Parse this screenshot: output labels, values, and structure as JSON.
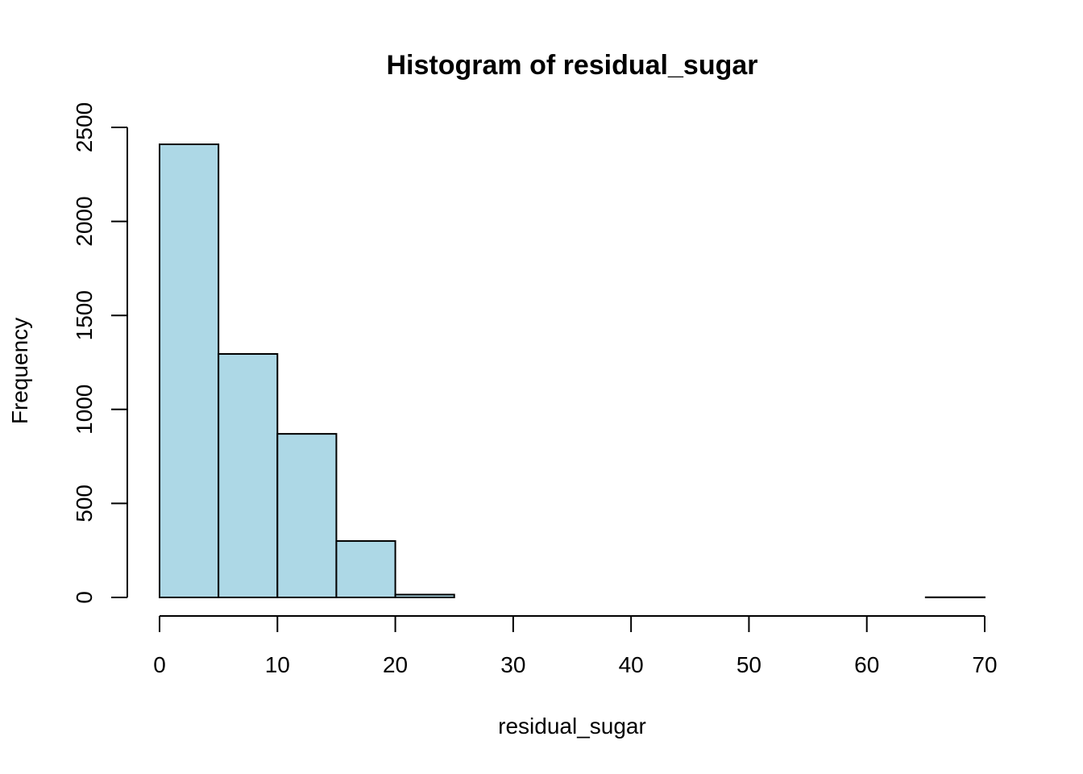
{
  "chart_data": {
    "type": "bar",
    "subtype": "histogram",
    "title": "Histogram of residual_sugar",
    "xlabel": "residual_sugar",
    "ylabel": "Frequency",
    "bin_width": 5,
    "bins": [
      {
        "start": 0,
        "end": 5,
        "count": 2410
      },
      {
        "start": 5,
        "end": 10,
        "count": 1295
      },
      {
        "start": 10,
        "end": 15,
        "count": 870
      },
      {
        "start": 15,
        "end": 20,
        "count": 300
      },
      {
        "start": 20,
        "end": 25,
        "count": 15
      },
      {
        "start": 25,
        "end": 30,
        "count": 0
      },
      {
        "start": 30,
        "end": 35,
        "count": 0
      },
      {
        "start": 35,
        "end": 40,
        "count": 0
      },
      {
        "start": 40,
        "end": 45,
        "count": 0
      },
      {
        "start": 45,
        "end": 50,
        "count": 0
      },
      {
        "start": 50,
        "end": 55,
        "count": 0
      },
      {
        "start": 55,
        "end": 60,
        "count": 0
      },
      {
        "start": 60,
        "end": 65,
        "count": 0
      },
      {
        "start": 65,
        "end": 70,
        "count": 1
      }
    ],
    "xlim": [
      0,
      70
    ],
    "ylim": [
      0,
      2500
    ],
    "xticks": [
      "0",
      "10",
      "20",
      "30",
      "40",
      "50",
      "60",
      "70"
    ],
    "yticks": [
      "0",
      "500",
      "1000",
      "1500",
      "2000",
      "2500"
    ],
    "grid": false,
    "legend": "none",
    "bar_color": "#ADD8E6",
    "border_color": "#000000"
  }
}
